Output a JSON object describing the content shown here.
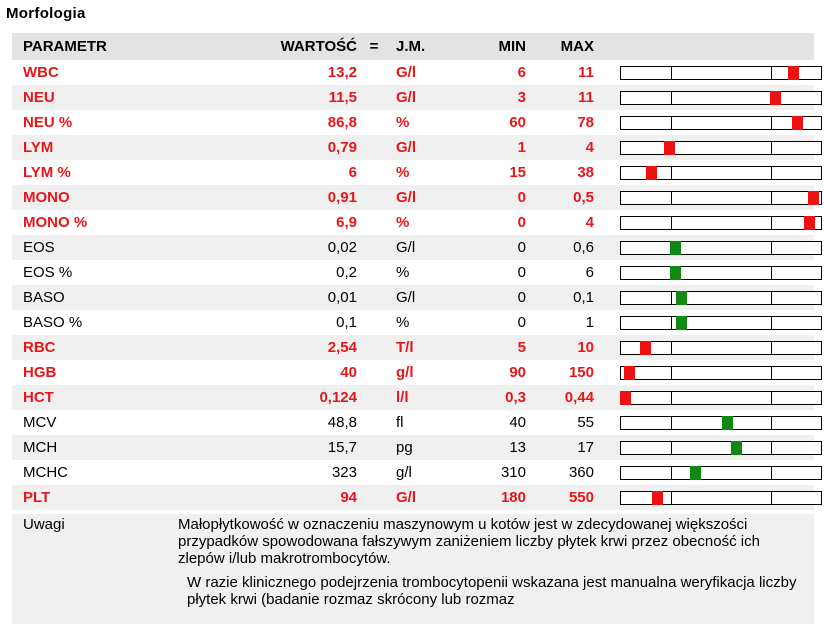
{
  "section_title": "Morfologia",
  "headers": {
    "param": "PARAMETR",
    "value": "WARTOŚĆ",
    "eq": "=",
    "unit": "J.M.",
    "min": "MIN",
    "max": "MAX"
  },
  "colors": {
    "abnormal_text": "#e8161a",
    "abnormal_marker": "#ee1111",
    "normal_marker": "#118811"
  },
  "rows": [
    {
      "param": "WBC",
      "value": "13,2",
      "unit": "G/l",
      "min": "6",
      "max": "11",
      "abnormal": true,
      "level": 0.86
    },
    {
      "param": "NEU",
      "value": "11,5",
      "unit": "G/l",
      "min": "3",
      "max": "11",
      "abnormal": true,
      "level": 0.77
    },
    {
      "param": "NEU %",
      "value": "86,8",
      "unit": "%",
      "min": "60",
      "max": "78",
      "abnormal": true,
      "level": 0.88
    },
    {
      "param": "LYM",
      "value": "0,79",
      "unit": "G/l",
      "min": "1",
      "max": "4",
      "abnormal": true,
      "level": 0.24
    },
    {
      "param": "LYM %",
      "value": "6",
      "unit": "%",
      "min": "15",
      "max": "38",
      "abnormal": true,
      "level": 0.15
    },
    {
      "param": "MONO",
      "value": "0,91",
      "unit": "G/l",
      "min": "0",
      "max": "0,5",
      "abnormal": true,
      "level": 0.96
    },
    {
      "param": "MONO %",
      "value": "6,9",
      "unit": "%",
      "min": "0",
      "max": "4",
      "abnormal": true,
      "level": 0.94
    },
    {
      "param": "EOS",
      "value": "0,02",
      "unit": "G/l",
      "min": "0",
      "max": "0,6",
      "abnormal": false,
      "level": 0.27
    },
    {
      "param": "EOS %",
      "value": "0,2",
      "unit": "%",
      "min": "0",
      "max": "6",
      "abnormal": false,
      "level": 0.27
    },
    {
      "param": "BASO",
      "value": "0,01",
      "unit": "G/l",
      "min": "0",
      "max": "0,1",
      "abnormal": false,
      "level": 0.3
    },
    {
      "param": "BASO %",
      "value": "0,1",
      "unit": "%",
      "min": "0",
      "max": "1",
      "abnormal": false,
      "level": 0.3
    },
    {
      "param": "RBC",
      "value": "2,54",
      "unit": "T/l",
      "min": "5",
      "max": "10",
      "abnormal": true,
      "level": 0.12
    },
    {
      "param": "HGB",
      "value": "40",
      "unit": "g/l",
      "min": "90",
      "max": "150",
      "abnormal": true,
      "level": 0.04
    },
    {
      "param": "HCT",
      "value": "0,124",
      "unit": "l/l",
      "min": "0,3",
      "max": "0,44",
      "abnormal": true,
      "level": 0.02
    },
    {
      "param": "MCV",
      "value": "48,8",
      "unit": "fl",
      "min": "40",
      "max": "55",
      "abnormal": false,
      "level": 0.53
    },
    {
      "param": "MCH",
      "value": "15,7",
      "unit": "pg",
      "min": "13",
      "max": "17",
      "abnormal": false,
      "level": 0.58
    },
    {
      "param": "MCHC",
      "value": "323",
      "unit": "g/l",
      "min": "310",
      "max": "360",
      "abnormal": false,
      "level": 0.37
    },
    {
      "param": "PLT",
      "value": "94",
      "unit": "G/l",
      "min": "180",
      "max": "550",
      "abnormal": true,
      "level": 0.18
    }
  ],
  "notes": {
    "label": "Uwagi",
    "text1": "Małopłytkowość w oznaczeniu maszynowym u kotów jest w zdecydowanej większości przypadków spowodowana fałszywym zaniżeniem liczby płytek krwi przez obecność ich zlepów i/lub makrotrombocytów.",
    "text2": "W razie klinicznego podejrzenia trombocytopenii wskazana jest manualna weryfikacja liczby płytek krwi (badanie rozmaz skrócony lub rozmaz"
  }
}
